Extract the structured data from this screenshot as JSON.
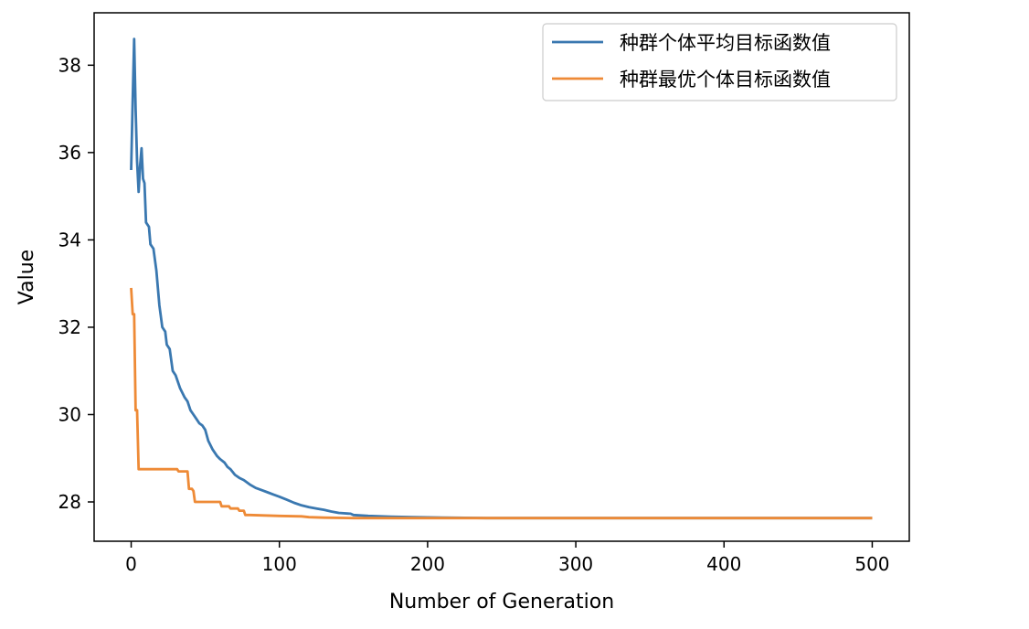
{
  "chart_data": {
    "type": "line",
    "title": "",
    "xlabel": "Number of Generation",
    "ylabel": "Value",
    "xlim": [
      -25,
      525
    ],
    "ylim": [
      27.1,
      39.2
    ],
    "xticks": [
      0,
      100,
      200,
      300,
      400,
      500
    ],
    "yticks": [
      28,
      30,
      32,
      34,
      36,
      38
    ],
    "grid": false,
    "legend_position": "top-right",
    "colors": {
      "avg": "#3a78b0",
      "best": "#ee8a36"
    },
    "series": [
      {
        "name": "种群个体平均目标函数值",
        "points": [
          [
            0,
            35.6
          ],
          [
            1,
            37.2
          ],
          [
            2,
            38.6
          ],
          [
            3,
            37.0
          ],
          [
            4,
            35.8
          ],
          [
            5,
            35.1
          ],
          [
            6,
            35.7
          ],
          [
            7,
            36.1
          ],
          [
            8,
            35.4
          ],
          [
            9,
            35.3
          ],
          [
            10,
            34.4
          ],
          [
            12,
            34.3
          ],
          [
            13,
            33.9
          ],
          [
            15,
            33.8
          ],
          [
            17,
            33.3
          ],
          [
            19,
            32.5
          ],
          [
            21,
            32.0
          ],
          [
            23,
            31.9
          ],
          [
            24,
            31.6
          ],
          [
            26,
            31.5
          ],
          [
            28,
            31.0
          ],
          [
            30,
            30.9
          ],
          [
            33,
            30.6
          ],
          [
            36,
            30.4
          ],
          [
            38,
            30.3
          ],
          [
            40,
            30.1
          ],
          [
            42,
            30.0
          ],
          [
            44,
            29.9
          ],
          [
            46,
            29.8
          ],
          [
            48,
            29.75
          ],
          [
            50,
            29.65
          ],
          [
            52,
            29.4
          ],
          [
            55,
            29.2
          ],
          [
            58,
            29.05
          ],
          [
            60,
            28.98
          ],
          [
            63,
            28.9
          ],
          [
            65,
            28.8
          ],
          [
            67,
            28.75
          ],
          [
            70,
            28.62
          ],
          [
            73,
            28.55
          ],
          [
            76,
            28.5
          ],
          [
            80,
            28.4
          ],
          [
            84,
            28.32
          ],
          [
            88,
            28.27
          ],
          [
            92,
            28.22
          ],
          [
            96,
            28.17
          ],
          [
            100,
            28.12
          ],
          [
            105,
            28.05
          ],
          [
            110,
            27.98
          ],
          [
            115,
            27.92
          ],
          [
            120,
            27.88
          ],
          [
            125,
            27.85
          ],
          [
            130,
            27.82
          ],
          [
            135,
            27.78
          ],
          [
            140,
            27.75
          ],
          [
            148,
            27.73
          ],
          [
            150,
            27.7
          ],
          [
            160,
            27.68
          ],
          [
            175,
            27.66
          ],
          [
            190,
            27.65
          ],
          [
            210,
            27.64
          ],
          [
            240,
            27.63
          ],
          [
            300,
            27.63
          ],
          [
            400,
            27.63
          ],
          [
            500,
            27.63
          ]
        ]
      },
      {
        "name": "种群最优个体目标函数值",
        "points": [
          [
            0,
            32.9
          ],
          [
            1,
            32.3
          ],
          [
            2,
            32.3
          ],
          [
            3,
            30.1
          ],
          [
            4,
            30.1
          ],
          [
            5,
            28.75
          ],
          [
            10,
            28.75
          ],
          [
            20,
            28.75
          ],
          [
            31,
            28.75
          ],
          [
            32,
            28.7
          ],
          [
            38,
            28.7
          ],
          [
            39,
            28.3
          ],
          [
            41,
            28.3
          ],
          [
            42,
            28.25
          ],
          [
            43,
            28.0
          ],
          [
            60,
            28.0
          ],
          [
            61,
            27.9
          ],
          [
            66,
            27.9
          ],
          [
            67,
            27.85
          ],
          [
            72,
            27.85
          ],
          [
            73,
            27.8
          ],
          [
            76,
            27.8
          ],
          [
            77,
            27.7
          ],
          [
            80,
            27.7
          ],
          [
            100,
            27.68
          ],
          [
            115,
            27.67
          ],
          [
            120,
            27.65
          ],
          [
            130,
            27.64
          ],
          [
            150,
            27.63
          ],
          [
            200,
            27.63
          ],
          [
            300,
            27.63
          ],
          [
            400,
            27.63
          ],
          [
            500,
            27.63
          ]
        ]
      }
    ]
  }
}
